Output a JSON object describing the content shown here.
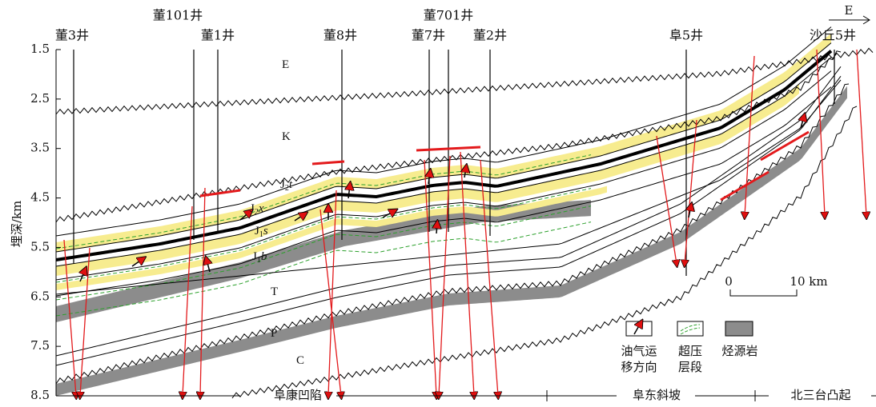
{
  "wells": [
    "董3井",
    "董101井",
    "董1井",
    "董8井",
    "董701井",
    "董7井",
    "董2井",
    "阜5井",
    "沙丘5井"
  ],
  "direction": "E",
  "axis": {
    "label": "埋深/km",
    "ticks": [
      1.5,
      2.5,
      3.5,
      4.5,
      5.5,
      6.5,
      7.5,
      8.5
    ]
  },
  "strata": [
    {
      "main": "E"
    },
    {
      "main": "K"
    },
    {
      "main": "J",
      "sub": "2",
      "rest": "t"
    },
    {
      "main": "J",
      "sub": "2",
      "rest": "x"
    },
    {
      "main": "J",
      "sub": "1",
      "rest": "s"
    },
    {
      "main": "J",
      "sub": "1",
      "rest": "b"
    },
    {
      "main": "T"
    },
    {
      "main": "P"
    },
    {
      "main": "C"
    }
  ],
  "scale": {
    "start": "0",
    "end": "10 km"
  },
  "legend": [
    {
      "lines": [
        "油气运",
        "移方向"
      ]
    },
    {
      "lines": [
        "超压",
        "层段"
      ]
    },
    {
      "lines": [
        "烃源岩"
      ]
    }
  ],
  "regions": [
    "阜康凹陷",
    "阜东斜坡",
    "北三台凸起"
  ]
}
